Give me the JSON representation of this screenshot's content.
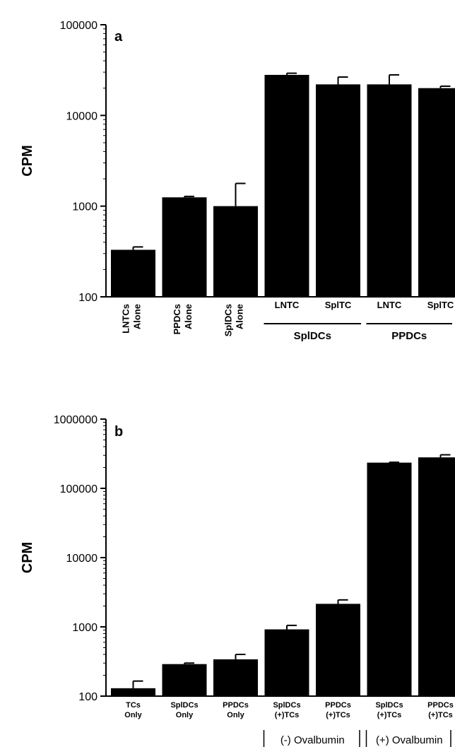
{
  "chart_data": [
    {
      "panel": "a",
      "type": "bar",
      "ylabel": "CPM",
      "yscale": "log",
      "ylim": [
        100,
        100000
      ],
      "yticks": [
        "100",
        "1000",
        "10000",
        "100000"
      ],
      "categories": [
        [
          "LNTCs",
          "Alone"
        ],
        [
          "PPDCs",
          "Alone"
        ],
        [
          "SplDCs",
          "Alone"
        ],
        [
          "LNTC"
        ],
        [
          "SplTC"
        ],
        [
          "LNTC"
        ],
        [
          "SplTC"
        ]
      ],
      "values": [
        330,
        1250,
        1000,
        28000,
        22000,
        22000,
        20000
      ],
      "errors": [
        25,
        30,
        780,
        1200,
        4500,
        6000,
        1000
      ],
      "groups": [
        {
          "label": "SplDCs",
          "from": 3,
          "to": 4
        },
        {
          "label": "PPDCs",
          "from": 5,
          "to": 6
        }
      ]
    },
    {
      "panel": "b",
      "type": "bar",
      "ylabel": "CPM",
      "yscale": "log",
      "ylim": [
        100,
        1000000
      ],
      "yticks": [
        "100",
        "1000",
        "10000",
        "100000",
        "1000000"
      ],
      "categories": [
        [
          "TCs",
          "Only"
        ],
        [
          "SplDCs",
          "Only"
        ],
        [
          "PPDCs",
          "Only"
        ],
        [
          "SplDCs",
          "(+)TCs"
        ],
        [
          "PPDCs",
          "(+)TCs"
        ],
        [
          "SplDCs",
          "(+)TCs"
        ],
        [
          "PPDCs",
          "(+)TCs"
        ]
      ],
      "values": [
        130,
        290,
        340,
        920,
        2150,
        235000,
        280000
      ],
      "errors": [
        35,
        10,
        60,
        130,
        300,
        3000,
        25000
      ],
      "groups": [
        {
          "label": "(-) Ovalbumin",
          "from": 3,
          "to": 4
        },
        {
          "label": "(+) Ovalbumin",
          "from": 5,
          "to": 6
        }
      ]
    }
  ]
}
